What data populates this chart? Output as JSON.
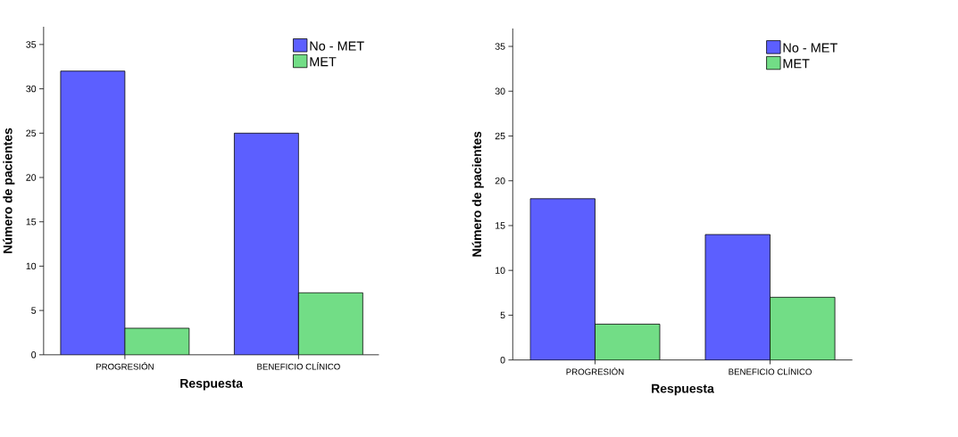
{
  "chart_data": [
    {
      "type": "bar",
      "xlabel": "Respuesta",
      "ylabel": "Número de pacientes",
      "categories": [
        "PROGRESIÓN",
        "BENEFICIO CLÍNICO"
      ],
      "series": [
        {
          "name": "No - MET",
          "color": "#5c5fff",
          "values": [
            32,
            25
          ]
        },
        {
          "name": "MET",
          "color": "#72dd86",
          "values": [
            3,
            7
          ]
        }
      ],
      "ylim": [
        0,
        37
      ],
      "yticks": [
        0,
        5,
        10,
        15,
        20,
        25,
        30,
        35
      ],
      "legend": "top right"
    },
    {
      "type": "bar",
      "xlabel": "Respuesta",
      "ylabel": "Número de pacientes",
      "categories": [
        "PROGRESIÓN",
        "BENEFICIO CLÍNICO"
      ],
      "series": [
        {
          "name": "No - MET",
          "color": "#5c5fff",
          "values": [
            18,
            14
          ]
        },
        {
          "name": "MET",
          "color": "#72dd86",
          "values": [
            4,
            7
          ]
        }
      ],
      "ylim": [
        0,
        37
      ],
      "yticks": [
        0,
        5,
        10,
        15,
        20,
        25,
        30,
        35
      ],
      "legend": "top right"
    }
  ]
}
